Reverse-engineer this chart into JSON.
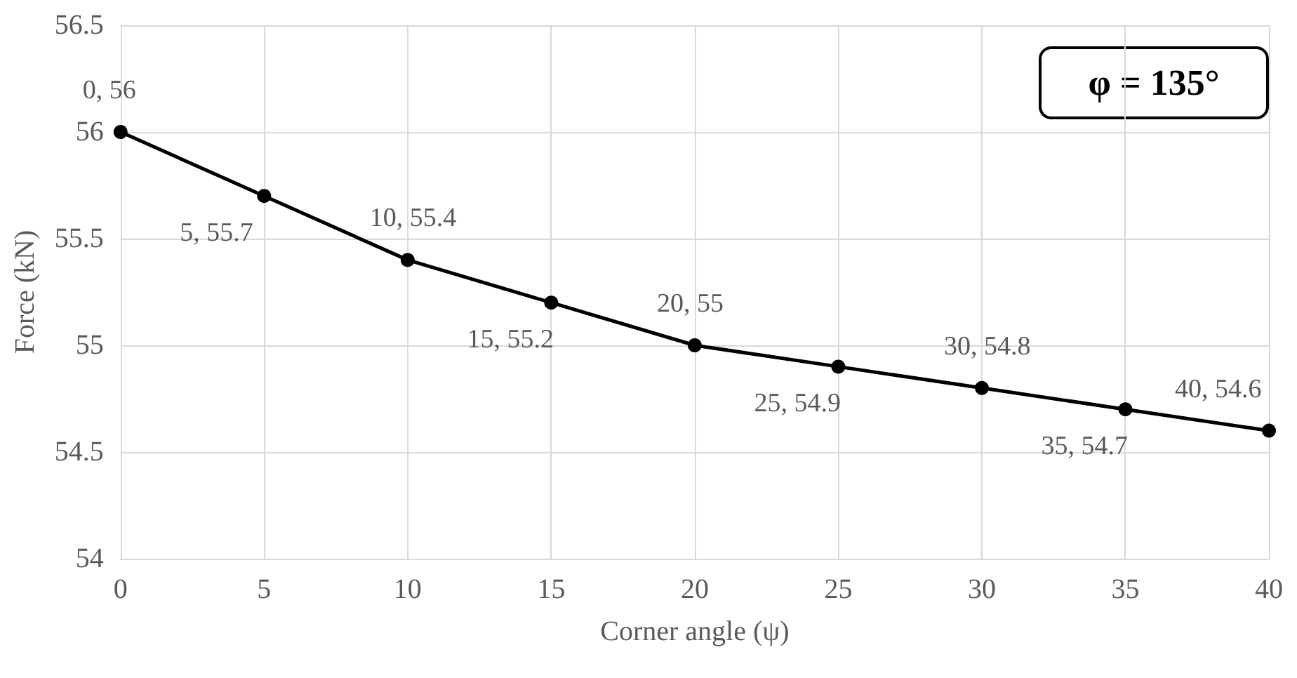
{
  "chart_data": {
    "type": "line",
    "xlabel": "Corner angle (ψ)",
    "ylabel": "Force (kN)",
    "x": [
      0,
      5,
      10,
      15,
      20,
      25,
      30,
      35,
      40
    ],
    "series": [
      {
        "color": "#000000",
        "values": [
          56,
          55.7,
          55.4,
          55.2,
          55,
          54.9,
          54.8,
          54.7,
          54.6
        ],
        "value_labels": [
          "0, 56",
          "5, 55.7",
          "10, 55.4",
          "15, 55.2",
          "20, 55",
          "25, 54.9",
          "30, 54.8",
          "35, 54.7",
          "40, 54.6"
        ]
      }
    ],
    "xlim": [
      0,
      40
    ],
    "xticks": [
      0,
      5,
      10,
      15,
      20,
      25,
      30,
      35,
      40
    ],
    "ylim": [
      54,
      56.5
    ],
    "yticks": [
      54,
      54.5,
      55,
      55.5,
      56,
      56.5
    ],
    "grid": true,
    "marker": "circle",
    "line_style": "solid",
    "annotations": [
      "φ = 135°"
    ]
  }
}
